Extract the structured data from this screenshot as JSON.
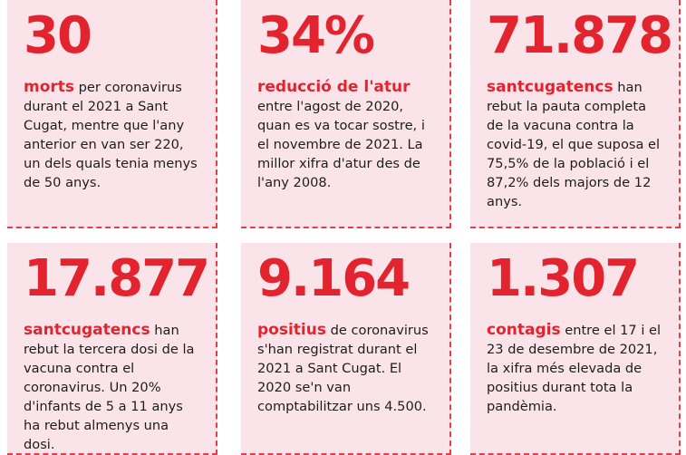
{
  "colors": {
    "accent": "#e3242f",
    "card_bg": "#fbe4e9",
    "border": "#e0404e"
  },
  "cards": [
    {
      "number": "30",
      "keyword": "morts",
      "text": " per coronavirus durant el 2021 a Sant Cugat, mentre que l'any anterior en van ser 220, un dels quals tenia menys de 50 anys."
    },
    {
      "number": "34%",
      "keyword": "reducció de l'atur",
      "text": " entre l'agost de 2020, quan es va tocar sostre, i el novembre de 2021. La millor xifra d'atur des de l'any 2008."
    },
    {
      "number": "71.878",
      "keyword": "santcugatencs",
      "text": " han rebut la pauta completa de la vacuna contra la covid-19, el que suposa el 75,5% de la població i el 87,2% dels majors de 12 anys."
    },
    {
      "number": "17.877",
      "keyword": "santcugatencs",
      "text": " han rebut la tercera dosi de la vacuna contra el coronavirus. Un 20% d'infants de 5 a 11 anys ha rebut almenys una dosi."
    },
    {
      "number": "9.164",
      "keyword": "positius",
      "text": " de coronavirus s'han registrat durant el 2021 a Sant Cugat. El 2020 se'n van comptabilitzar uns 4.500."
    },
    {
      "number": "1.307",
      "keyword": "contagis",
      "text": " entre el 17 i el 23 de desembre de 2021, la xifra més elevada de positius durant tota la pandèmia."
    }
  ]
}
